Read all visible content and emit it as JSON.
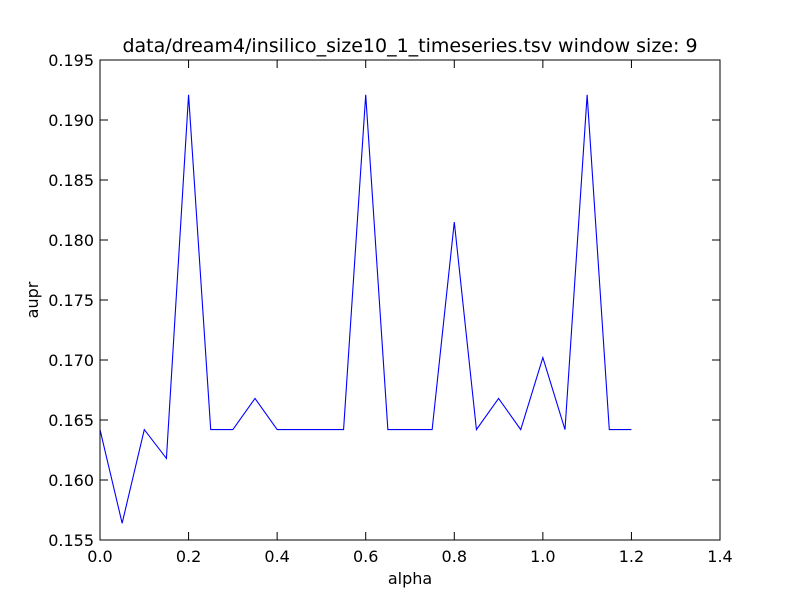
{
  "chart_data": {
    "type": "line",
    "title": "data/dream4/insilico_size10_1_timeseries.tsv window size: 9",
    "xlabel": "alpha",
    "ylabel": "aupr",
    "xlim": [
      0.0,
      1.4
    ],
    "ylim": [
      0.155,
      0.195
    ],
    "xticks": [
      "0.0",
      "0.2",
      "0.4",
      "0.6",
      "0.8",
      "1.0",
      "1.2",
      "1.4"
    ],
    "yticks": [
      "0.155",
      "0.160",
      "0.165",
      "0.170",
      "0.175",
      "0.180",
      "0.185",
      "0.190",
      "0.195"
    ],
    "grid": false,
    "legend": "none",
    "series": [
      {
        "color": "#0000ff",
        "x": [
          0.0,
          0.05,
          0.1,
          0.15,
          0.2,
          0.25,
          0.3,
          0.35,
          0.4,
          0.45,
          0.5,
          0.55,
          0.6,
          0.65,
          0.7,
          0.75,
          0.8,
          0.85,
          0.9,
          0.95,
          1.0,
          1.05,
          1.1,
          1.15,
          1.2
        ],
        "y": [
          0.1642,
          0.1564,
          0.1642,
          0.1618,
          0.1921,
          0.1642,
          0.1642,
          0.1668,
          0.1642,
          0.1642,
          0.1642,
          0.1642,
          0.1921,
          0.1642,
          0.1642,
          0.1642,
          0.1815,
          0.1642,
          0.1668,
          0.1642,
          0.1702,
          0.1642,
          0.1921,
          0.1642,
          0.1642
        ]
      }
    ]
  }
}
